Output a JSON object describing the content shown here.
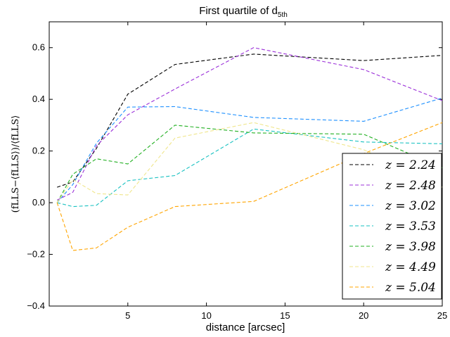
{
  "chart_data": {
    "type": "line",
    "title": "First quartile of d",
    "title_sub": "5th",
    "xlabel": "distance [arcsec]",
    "ylabel": "(fₗₗₛ − ⟨fₗₗₛ⟩)/⟨fₗₗₛ⟩",
    "ylabel_display": "(fLLS−⟨fLLS⟩)/⟨fLLS⟩",
    "xlim": [
      0,
      25
    ],
    "ylim": [
      -0.4,
      0.7
    ],
    "xticks": [
      5,
      10,
      15,
      20,
      25
    ],
    "xtick_labels": [
      "5",
      "10",
      "15",
      "20",
      "25"
    ],
    "yticks": [
      -0.4,
      -0.2,
      0.0,
      0.2,
      0.4,
      0.6
    ],
    "ytick_labels": [
      "−0.4",
      "−0.2",
      "0.0",
      "0.2",
      "0.4",
      "0.6"
    ],
    "grid": false,
    "legend_position": "lower-right",
    "series": [
      {
        "name": "z = 2.24",
        "color": "#000000",
        "x": [
          0.5,
          1.5,
          3,
          5,
          8,
          13,
          20,
          25
        ],
        "y": [
          0.06,
          0.08,
          0.21,
          0.42,
          0.535,
          0.575,
          0.55,
          0.57
        ]
      },
      {
        "name": "z = 2.48",
        "color": "#9b30d9",
        "x": [
          0.5,
          1.5,
          3,
          5,
          8,
          13,
          20,
          25
        ],
        "y": [
          0.01,
          0.04,
          0.22,
          0.34,
          0.44,
          0.6,
          0.515,
          0.395
        ]
      },
      {
        "name": "z = 3.02",
        "color": "#1e90ff",
        "x": [
          0.5,
          1.5,
          3,
          5,
          8,
          13,
          20,
          25
        ],
        "y": [
          0.0,
          0.07,
          0.23,
          0.37,
          0.372,
          0.33,
          0.315,
          0.405
        ]
      },
      {
        "name": "z = 3.53",
        "color": "#17c1c1",
        "x": [
          0.5,
          1.5,
          3,
          5,
          8,
          13,
          20,
          25
        ],
        "y": [
          0.0,
          -0.015,
          -0.01,
          0.085,
          0.105,
          0.285,
          0.235,
          0.228
        ]
      },
      {
        "name": "z = 3.98",
        "color": "#22b022",
        "x": [
          0.5,
          1.5,
          3,
          5,
          8,
          13,
          20,
          25
        ],
        "y": [
          0.0,
          0.11,
          0.17,
          0.15,
          0.3,
          0.27,
          0.265,
          0.135
        ]
      },
      {
        "name": "z = 4.49",
        "color": "#f0e68c",
        "x": [
          0.5,
          1.5,
          3,
          5,
          8,
          13,
          20,
          25
        ],
        "y": [
          0.0,
          0.09,
          0.035,
          0.03,
          0.25,
          0.31,
          0.205,
          0.06
        ]
      },
      {
        "name": "z = 5.04",
        "color": "#ffa500",
        "x": [
          0.5,
          1.5,
          3,
          5,
          8,
          13,
          20,
          25
        ],
        "y": [
          0.0,
          -0.185,
          -0.175,
          -0.095,
          -0.015,
          0.005,
          0.19,
          0.31
        ]
      }
    ]
  }
}
